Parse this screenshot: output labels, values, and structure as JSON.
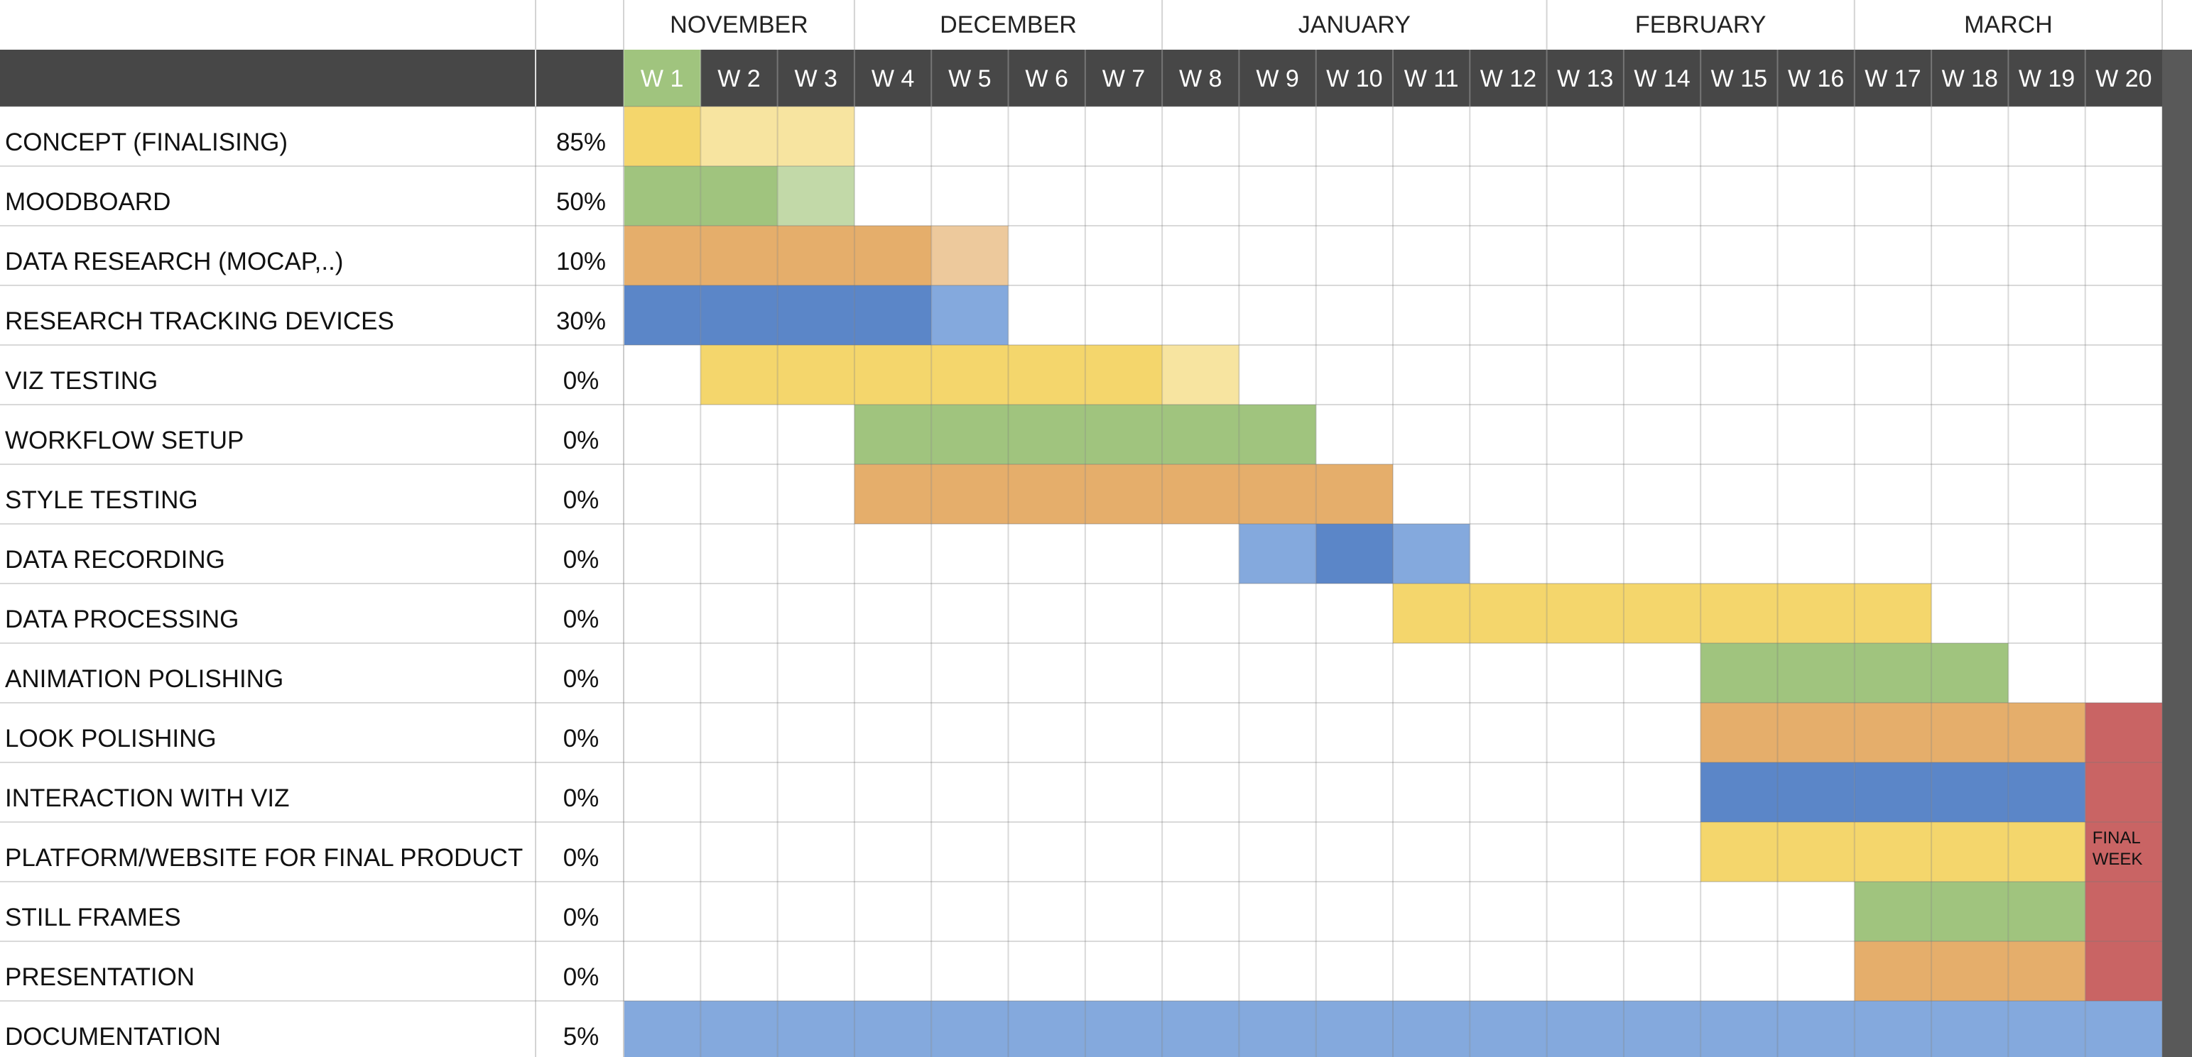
{
  "chart_data": {
    "type": "table",
    "months": [
      {
        "label": "NOVEMBER",
        "weeks": [
          1,
          3
        ]
      },
      {
        "label": "DECEMBER",
        "weeks": [
          4,
          7
        ]
      },
      {
        "label": "JANUARY",
        "weeks": [
          8,
          12
        ]
      },
      {
        "label": "FEBRUARY",
        "weeks": [
          13,
          16
        ]
      },
      {
        "label": "MARCH",
        "weeks": [
          17,
          20
        ]
      }
    ],
    "weeks": [
      "W 1",
      "W 2",
      "W 3",
      "W 4",
      "W 5",
      "W 6",
      "W 7",
      "W 8",
      "W 9",
      "W 10",
      "W 11",
      "W 12",
      "W 13",
      "W 14",
      "W 15",
      "W 16",
      "W 17",
      "W 18",
      "W 19",
      "W 20"
    ],
    "current_week": 1,
    "colors": {
      "yellow": "#f4d66c",
      "yellow_light": "#f7e4a0",
      "green": "#a0c47e",
      "green_light": "#c2d9a8",
      "orange": "#e5ae6b",
      "orange_light": "#edc99c",
      "blue": "#5b86c8",
      "blue_light": "#84a9dd",
      "red": "#c96464",
      "header_dark": "#474747",
      "right_strip": "#595959",
      "grid": "#d9d9d9"
    },
    "tasks": [
      {
        "name": "CONCEPT (FINALISING)",
        "percent": "85%",
        "cells": [
          [
            1,
            "yellow"
          ],
          [
            2,
            "yellow_light"
          ],
          [
            3,
            "yellow_light"
          ]
        ]
      },
      {
        "name": "MOODBOARD",
        "percent": "50%",
        "cells": [
          [
            1,
            "green"
          ],
          [
            2,
            "green"
          ],
          [
            3,
            "green_light"
          ]
        ]
      },
      {
        "name": "DATA RESEARCH (MOCAP,..)",
        "percent": "10%",
        "cells": [
          [
            1,
            "orange"
          ],
          [
            2,
            "orange"
          ],
          [
            3,
            "orange"
          ],
          [
            4,
            "orange"
          ],
          [
            5,
            "orange_light"
          ]
        ]
      },
      {
        "name": "RESEARCH TRACKING DEVICES",
        "percent": "30%",
        "cells": [
          [
            1,
            "blue"
          ],
          [
            2,
            "blue"
          ],
          [
            3,
            "blue"
          ],
          [
            4,
            "blue"
          ],
          [
            5,
            "blue_light"
          ]
        ]
      },
      {
        "name": "VIZ TESTING",
        "percent": "0%",
        "cells": [
          [
            2,
            "yellow"
          ],
          [
            3,
            "yellow"
          ],
          [
            4,
            "yellow"
          ],
          [
            5,
            "yellow"
          ],
          [
            6,
            "yellow"
          ],
          [
            7,
            "yellow"
          ],
          [
            8,
            "yellow_light"
          ]
        ]
      },
      {
        "name": "WORKFLOW SETUP",
        "percent": "0%",
        "cells": [
          [
            4,
            "green"
          ],
          [
            5,
            "green"
          ],
          [
            6,
            "green"
          ],
          [
            7,
            "green"
          ],
          [
            8,
            "green"
          ],
          [
            9,
            "green"
          ]
        ]
      },
      {
        "name": "STYLE TESTING",
        "percent": "0%",
        "cells": [
          [
            4,
            "orange"
          ],
          [
            5,
            "orange"
          ],
          [
            6,
            "orange"
          ],
          [
            7,
            "orange"
          ],
          [
            8,
            "orange"
          ],
          [
            9,
            "orange"
          ],
          [
            10,
            "orange"
          ]
        ]
      },
      {
        "name": "DATA RECORDING",
        "percent": "0%",
        "cells": [
          [
            9,
            "blue_light"
          ],
          [
            10,
            "blue"
          ],
          [
            11,
            "blue_light"
          ]
        ]
      },
      {
        "name": "DATA PROCESSING",
        "percent": "0%",
        "cells": [
          [
            11,
            "yellow"
          ],
          [
            12,
            "yellow"
          ],
          [
            13,
            "yellow"
          ],
          [
            14,
            "yellow"
          ],
          [
            15,
            "yellow"
          ],
          [
            16,
            "yellow"
          ],
          [
            17,
            "yellow"
          ]
        ]
      },
      {
        "name": "ANIMATION POLISHING",
        "percent": "0%",
        "cells": [
          [
            15,
            "green"
          ],
          [
            16,
            "green"
          ],
          [
            17,
            "green"
          ],
          [
            18,
            "green"
          ]
        ]
      },
      {
        "name": "LOOK POLISHING",
        "percent": "0%",
        "cells": [
          [
            15,
            "orange"
          ],
          [
            16,
            "orange"
          ],
          [
            17,
            "orange"
          ],
          [
            18,
            "orange"
          ],
          [
            19,
            "orange"
          ]
        ]
      },
      {
        "name": "INTERACTION WITH VIZ",
        "percent": "0%",
        "cells": [
          [
            15,
            "blue"
          ],
          [
            16,
            "blue"
          ],
          [
            17,
            "blue"
          ],
          [
            18,
            "blue"
          ],
          [
            19,
            "blue"
          ]
        ]
      },
      {
        "name": "PLATFORM/WEBSITE FOR FINAL PRODUCT",
        "percent": "0%",
        "cells": [
          [
            15,
            "yellow"
          ],
          [
            16,
            "yellow"
          ],
          [
            17,
            "yellow"
          ],
          [
            18,
            "yellow"
          ],
          [
            19,
            "yellow"
          ]
        ]
      },
      {
        "name": "STILL FRAMES",
        "percent": "0%",
        "cells": [
          [
            17,
            "green"
          ],
          [
            18,
            "green"
          ],
          [
            19,
            "green"
          ]
        ]
      },
      {
        "name": "PRESENTATION",
        "percent": "0%",
        "cells": [
          [
            17,
            "orange"
          ],
          [
            18,
            "orange"
          ],
          [
            19,
            "orange"
          ]
        ]
      },
      {
        "name": "DOCUMENTATION",
        "percent": "5%",
        "cells": [
          [
            1,
            "blue_light"
          ],
          [
            2,
            "blue_light"
          ],
          [
            3,
            "blue_light"
          ],
          [
            4,
            "blue_light"
          ],
          [
            5,
            "blue_light"
          ],
          [
            6,
            "blue_light"
          ],
          [
            7,
            "blue_light"
          ],
          [
            8,
            "blue_light"
          ],
          [
            9,
            "blue_light"
          ],
          [
            10,
            "blue_light"
          ],
          [
            11,
            "blue_light"
          ],
          [
            12,
            "blue_light"
          ],
          [
            13,
            "blue_light"
          ],
          [
            14,
            "blue_light"
          ],
          [
            15,
            "blue_light"
          ],
          [
            16,
            "blue_light"
          ],
          [
            17,
            "blue_light"
          ],
          [
            18,
            "blue_light"
          ],
          [
            19,
            "blue_light"
          ],
          [
            20,
            "blue_light"
          ]
        ]
      }
    ],
    "final_week": {
      "week": 20,
      "from_task": 11,
      "to_task": 15,
      "color": "red",
      "text_lines": [
        "FINAL",
        "WEEK"
      ]
    }
  }
}
